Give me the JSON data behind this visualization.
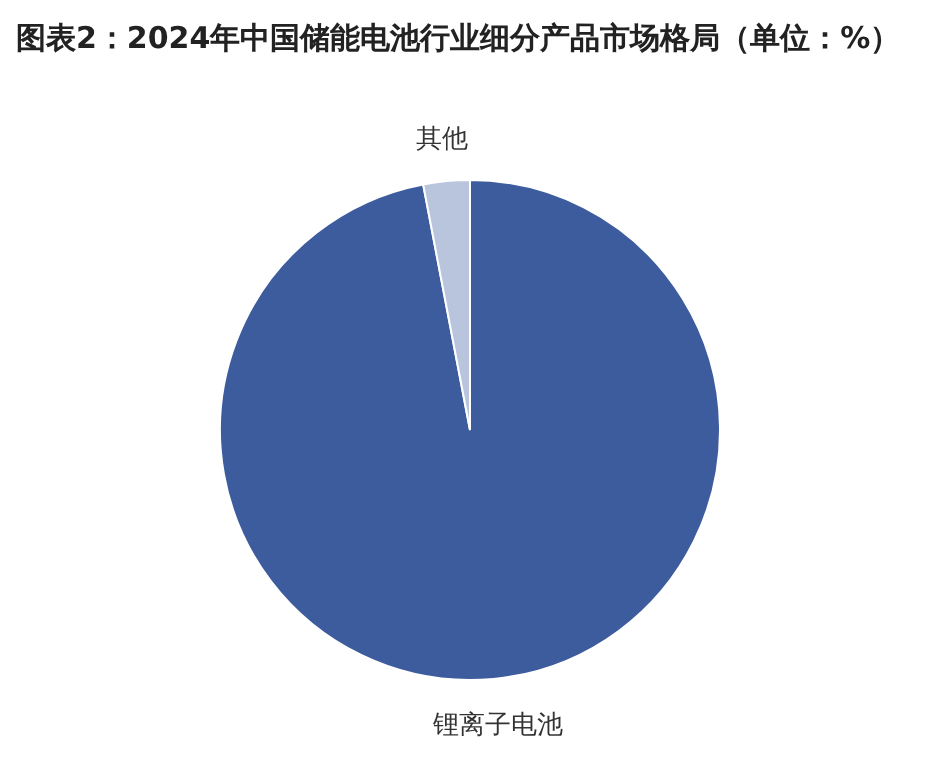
{
  "chart_data": {
    "type": "pie",
    "title": "图表2：2024年中国储能电池行业细分产品市场格局（单位：%）",
    "categories": [
      "锂离子电池",
      "其他"
    ],
    "values": [
      97,
      3
    ],
    "colors": [
      "#3d5c9e",
      "#b9c5dd"
    ]
  }
}
